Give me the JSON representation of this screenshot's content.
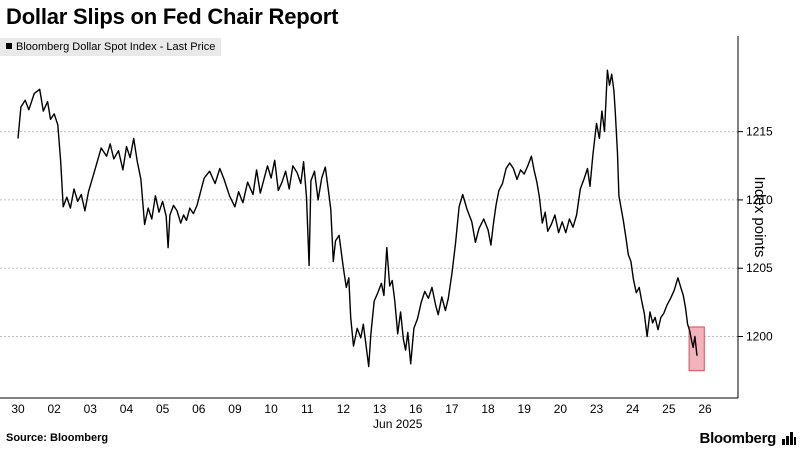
{
  "header": {
    "title": "Dollar Slips on Fed Chair Report",
    "legend_label": "Bloomberg Dollar Spot Index - Last Price"
  },
  "footer": {
    "source": "Source: Bloomberg",
    "brand": "Bloomberg"
  },
  "chart_data": {
    "type": "line",
    "title": "Dollar Slips on Fed Chair Report",
    "ylabel": "Index points",
    "xlabel_month": "Jun 2025",
    "ylim": [
      1195.5,
      1222
    ],
    "yticks": [
      1200,
      1205,
      1210,
      1215
    ],
    "grid": "horizontal dashed",
    "legend_position": "top-left",
    "categories": [
      "30",
      "02",
      "03",
      "04",
      "05",
      "06",
      "09",
      "10",
      "11",
      "12",
      "13",
      "16",
      "17",
      "18",
      "19",
      "20",
      "23",
      "24",
      "25",
      "26"
    ],
    "series": [
      {
        "name": "Bloomberg Dollar Spot Index - Last Price",
        "color": "#000000",
        "points": [
          [
            0.0,
            1214.5
          ],
          [
            0.08,
            1216.8
          ],
          [
            0.2,
            1217.3
          ],
          [
            0.3,
            1216.6
          ],
          [
            0.45,
            1217.8
          ],
          [
            0.6,
            1218.1
          ],
          [
            0.7,
            1216.5
          ],
          [
            0.82,
            1217.2
          ],
          [
            0.9,
            1215.9
          ],
          [
            1.0,
            1216.3
          ],
          [
            1.1,
            1215.5
          ],
          [
            1.18,
            1212.8
          ],
          [
            1.25,
            1209.5
          ],
          [
            1.35,
            1210.2
          ],
          [
            1.45,
            1209.4
          ],
          [
            1.55,
            1210.8
          ],
          [
            1.65,
            1209.9
          ],
          [
            1.75,
            1210.4
          ],
          [
            1.85,
            1209.2
          ],
          [
            1.95,
            1210.6
          ],
          [
            2.05,
            1211.5
          ],
          [
            2.15,
            1212.4
          ],
          [
            2.3,
            1213.8
          ],
          [
            2.45,
            1213.2
          ],
          [
            2.55,
            1214.1
          ],
          [
            2.65,
            1213.0
          ],
          [
            2.78,
            1213.6
          ],
          [
            2.9,
            1212.2
          ],
          [
            3.0,
            1213.9
          ],
          [
            3.1,
            1213.1
          ],
          [
            3.2,
            1214.5
          ],
          [
            3.3,
            1212.8
          ],
          [
            3.4,
            1211.5
          ],
          [
            3.5,
            1208.2
          ],
          [
            3.6,
            1209.4
          ],
          [
            3.7,
            1208.6
          ],
          [
            3.8,
            1210.3
          ],
          [
            3.9,
            1209.1
          ],
          [
            4.0,
            1209.9
          ],
          [
            4.1,
            1208.8
          ],
          [
            4.15,
            1206.5
          ],
          [
            4.2,
            1208.9
          ],
          [
            4.3,
            1209.6
          ],
          [
            4.4,
            1209.2
          ],
          [
            4.5,
            1208.3
          ],
          [
            4.58,
            1208.9
          ],
          [
            4.66,
            1208.5
          ],
          [
            4.75,
            1209.4
          ],
          [
            4.85,
            1209.0
          ],
          [
            4.95,
            1209.6
          ],
          [
            5.05,
            1210.6
          ],
          [
            5.15,
            1211.6
          ],
          [
            5.3,
            1212.1
          ],
          [
            5.45,
            1211.2
          ],
          [
            5.58,
            1212.3
          ],
          [
            5.7,
            1211.5
          ],
          [
            5.85,
            1210.3
          ],
          [
            6.0,
            1209.5
          ],
          [
            6.1,
            1210.6
          ],
          [
            6.22,
            1209.8
          ],
          [
            6.35,
            1211.3
          ],
          [
            6.5,
            1210.4
          ],
          [
            6.6,
            1212.2
          ],
          [
            6.7,
            1210.5
          ],
          [
            6.8,
            1211.5
          ],
          [
            6.9,
            1212.5
          ],
          [
            7.0,
            1211.6
          ],
          [
            7.1,
            1212.9
          ],
          [
            7.2,
            1210.7
          ],
          [
            7.3,
            1211.3
          ],
          [
            7.4,
            1212.1
          ],
          [
            7.5,
            1210.8
          ],
          [
            7.6,
            1212.5
          ],
          [
            7.72,
            1212.0
          ],
          [
            7.82,
            1211.2
          ],
          [
            7.9,
            1212.8
          ],
          [
            7.98,
            1210.2
          ],
          [
            8.05,
            1205.2
          ],
          [
            8.1,
            1211.4
          ],
          [
            8.2,
            1212.1
          ],
          [
            8.3,
            1210.0
          ],
          [
            8.4,
            1211.6
          ],
          [
            8.5,
            1212.4
          ],
          [
            8.58,
            1210.8
          ],
          [
            8.65,
            1209.3
          ],
          [
            8.72,
            1205.5
          ],
          [
            8.78,
            1207.0
          ],
          [
            8.88,
            1207.4
          ],
          [
            9.0,
            1205.0
          ],
          [
            9.08,
            1203.6
          ],
          [
            9.15,
            1204.3
          ],
          [
            9.2,
            1201.4
          ],
          [
            9.28,
            1199.3
          ],
          [
            9.38,
            1200.6
          ],
          [
            9.48,
            1199.9
          ],
          [
            9.55,
            1200.9
          ],
          [
            9.62,
            1199.5
          ],
          [
            9.7,
            1197.8
          ],
          [
            9.76,
            1200.2
          ],
          [
            9.85,
            1202.6
          ],
          [
            9.95,
            1203.2
          ],
          [
            10.05,
            1203.9
          ],
          [
            10.12,
            1203.0
          ],
          [
            10.2,
            1206.5
          ],
          [
            10.28,
            1203.7
          ],
          [
            10.35,
            1204.1
          ],
          [
            10.42,
            1202.6
          ],
          [
            10.5,
            1200.2
          ],
          [
            10.58,
            1201.8
          ],
          [
            10.66,
            1199.8
          ],
          [
            10.72,
            1199.0
          ],
          [
            10.78,
            1200.3
          ],
          [
            10.86,
            1198.0
          ],
          [
            10.95,
            1200.6
          ],
          [
            11.05,
            1201.3
          ],
          [
            11.15,
            1202.5
          ],
          [
            11.25,
            1203.3
          ],
          [
            11.35,
            1202.8
          ],
          [
            11.45,
            1203.6
          ],
          [
            11.55,
            1202.3
          ],
          [
            11.62,
            1201.6
          ],
          [
            11.72,
            1202.9
          ],
          [
            11.82,
            1201.9
          ],
          [
            11.9,
            1202.8
          ],
          [
            12.0,
            1204.6
          ],
          [
            12.1,
            1206.8
          ],
          [
            12.2,
            1209.5
          ],
          [
            12.3,
            1210.4
          ],
          [
            12.42,
            1209.3
          ],
          [
            12.55,
            1208.4
          ],
          [
            12.65,
            1206.9
          ],
          [
            12.75,
            1207.9
          ],
          [
            12.88,
            1208.6
          ],
          [
            13.0,
            1207.8
          ],
          [
            13.08,
            1206.7
          ],
          [
            13.15,
            1208.3
          ],
          [
            13.22,
            1209.6
          ],
          [
            13.3,
            1210.7
          ],
          [
            13.4,
            1211.2
          ],
          [
            13.5,
            1212.3
          ],
          [
            13.6,
            1212.7
          ],
          [
            13.7,
            1212.3
          ],
          [
            13.8,
            1211.5
          ],
          [
            13.9,
            1212.2
          ],
          [
            14.0,
            1211.9
          ],
          [
            14.1,
            1212.5
          ],
          [
            14.2,
            1213.2
          ],
          [
            14.28,
            1212.1
          ],
          [
            14.35,
            1211.3
          ],
          [
            14.42,
            1210.2
          ],
          [
            14.5,
            1208.3
          ],
          [
            14.58,
            1209.1
          ],
          [
            14.65,
            1207.7
          ],
          [
            14.75,
            1208.2
          ],
          [
            14.85,
            1208.9
          ],
          [
            14.95,
            1207.6
          ],
          [
            15.05,
            1208.4
          ],
          [
            15.15,
            1207.6
          ],
          [
            15.25,
            1208.6
          ],
          [
            15.35,
            1208.0
          ],
          [
            15.45,
            1208.9
          ],
          [
            15.55,
            1210.8
          ],
          [
            15.65,
            1211.5
          ],
          [
            15.75,
            1212.3
          ],
          [
            15.82,
            1211.0
          ],
          [
            15.9,
            1213.3
          ],
          [
            16.0,
            1215.6
          ],
          [
            16.08,
            1214.5
          ],
          [
            16.15,
            1216.5
          ],
          [
            16.22,
            1215.0
          ],
          [
            16.3,
            1219.5
          ],
          [
            16.36,
            1218.4
          ],
          [
            16.42,
            1219.2
          ],
          [
            16.48,
            1218.0
          ],
          [
            16.52,
            1216.4
          ],
          [
            16.58,
            1213.4
          ],
          [
            16.62,
            1210.3
          ],
          [
            16.68,
            1209.4
          ],
          [
            16.74,
            1208.5
          ],
          [
            16.82,
            1207.1
          ],
          [
            16.88,
            1206.0
          ],
          [
            16.95,
            1205.5
          ],
          [
            17.02,
            1204.2
          ],
          [
            17.1,
            1203.2
          ],
          [
            17.18,
            1203.6
          ],
          [
            17.25,
            1202.6
          ],
          [
            17.32,
            1201.7
          ],
          [
            17.4,
            1200.0
          ],
          [
            17.48,
            1201.8
          ],
          [
            17.55,
            1201.0
          ],
          [
            17.62,
            1201.4
          ],
          [
            17.7,
            1200.5
          ],
          [
            17.78,
            1201.4
          ],
          [
            17.86,
            1201.7
          ],
          [
            17.95,
            1202.3
          ],
          [
            18.05,
            1202.8
          ],
          [
            18.15,
            1203.4
          ],
          [
            18.25,
            1204.3
          ],
          [
            18.33,
            1203.6
          ],
          [
            18.4,
            1203.0
          ],
          [
            18.46,
            1202.1
          ],
          [
            18.52,
            1200.9
          ],
          [
            18.58,
            1200.4
          ],
          [
            18.63,
            1199.7
          ],
          [
            18.67,
            1199.2
          ],
          [
            18.72,
            1200.0
          ],
          [
            18.78,
            1198.6
          ]
        ]
      }
    ],
    "highlight": {
      "x_start": 18.56,
      "x_end": 18.98,
      "y_start": 1200.7,
      "y_end": 1197.5,
      "color": "#f3b3bc"
    }
  }
}
